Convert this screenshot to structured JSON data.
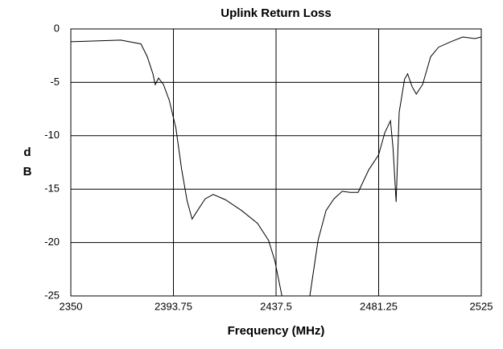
{
  "chart_data": {
    "type": "line",
    "title": "Uplink Return Loss",
    "xlabel": "Frequency (MHz)",
    "ylabel": "dB",
    "x": [
      2350,
      2371.3,
      2379.9,
      2382.6,
      2385,
      2386,
      2387.4,
      2389.5,
      2392,
      2394.8,
      2397.2,
      2399.6,
      2401.7,
      2404,
      2407.3,
      2410.7,
      2416,
      2422.8,
      2429.6,
      2434.3,
      2437,
      2440,
      2445,
      2451.9,
      2455.4,
      2458.8,
      2462.2,
      2465.7,
      2469.1,
      2472.5,
      2477,
      2481.2,
      2483.9,
      2486.3,
      2487.4,
      2488.7,
      2490,
      2492.3,
      2493.6,
      2495.5,
      2497.3,
      2500,
      2503.4,
      2506.8,
      2512,
      2517.1,
      2522.3,
      2525
    ],
    "series": [
      {
        "name": "Return Loss",
        "color": "#000000",
        "values": [
          -1.2,
          -1.05,
          -1.4,
          -2.6,
          -4.2,
          -5.2,
          -4.6,
          -5.2,
          -6.7,
          -9.3,
          -13.1,
          -16.1,
          -17.8,
          -17,
          -15.9,
          -15.5,
          -16,
          -17,
          -18.2,
          -19.8,
          -21.7,
          -25,
          null,
          -25,
          -19.8,
          -17,
          -15.9,
          -15.2,
          -15.3,
          -15.3,
          -13.2,
          -11.8,
          -9.7,
          -8.6,
          -11.2,
          -16.2,
          -7.8,
          -4.7,
          -4.2,
          -5.4,
          -6.1,
          -5.2,
          -2.6,
          -1.7,
          -1.2,
          -0.75,
          -0.9,
          -0.75
        ]
      }
    ],
    "xlim": [
      2350,
      2525
    ],
    "xticks": [
      2350,
      2393.75,
      2437.5,
      2481.25,
      2525
    ],
    "ylim": [
      -25,
      0
    ],
    "yticks": [
      0,
      -5,
      -10,
      -15,
      -20,
      -25
    ],
    "grid": true
  }
}
